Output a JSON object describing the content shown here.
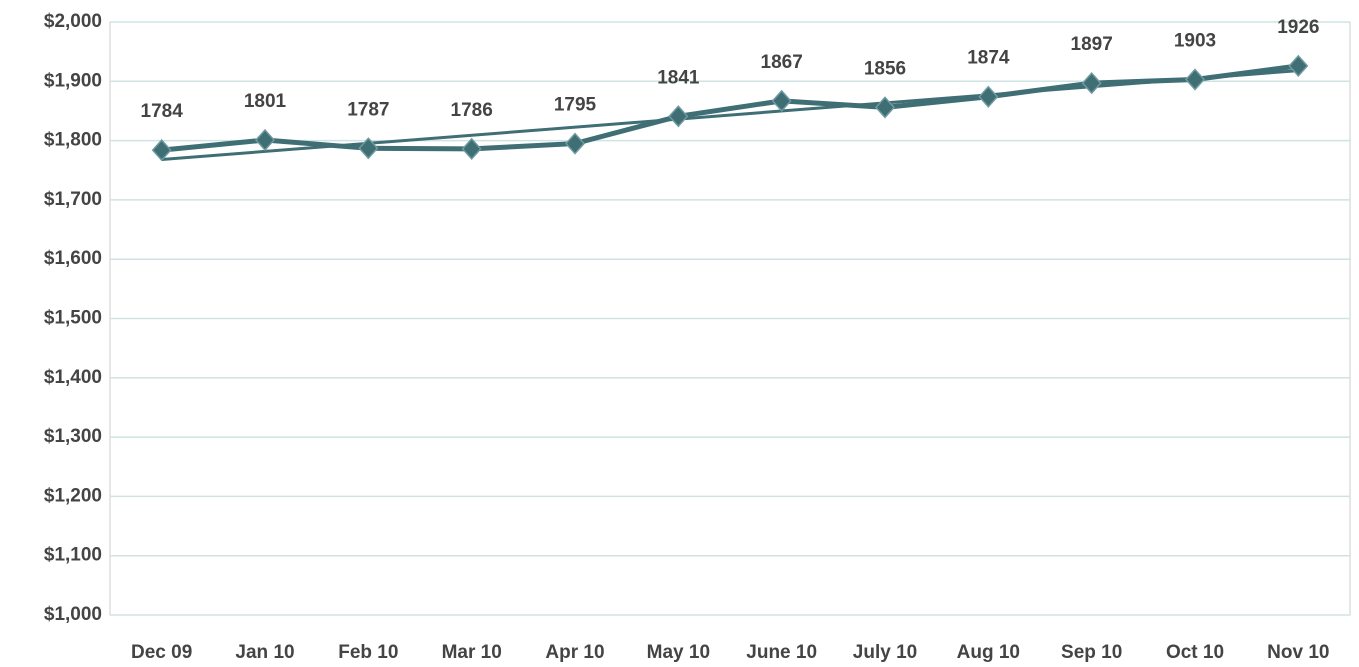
{
  "chart_data": {
    "type": "line",
    "categories": [
      "Dec 09",
      "Jan 10",
      "Feb 10",
      "Mar 10",
      "Apr 10",
      "May 10",
      "June 10",
      "July 10",
      "Aug 10",
      "Sep 10",
      "Oct 10",
      "Nov 10"
    ],
    "series": [
      {
        "color": "#3f6e75",
        "values": [
          1784,
          1801,
          1787,
          1786,
          1795,
          1841,
          1867,
          1856,
          1874,
          1897,
          1903,
          1926
        ]
      }
    ],
    "ylim": [
      1000,
      2000
    ],
    "yticks": [
      {
        "value": 1000,
        "label": "$1,000"
      },
      {
        "value": 1100,
        "label": "$1,100"
      },
      {
        "value": 1200,
        "label": "$1,200"
      },
      {
        "value": 1300,
        "label": "$1,300"
      },
      {
        "value": 1400,
        "label": "$1,400"
      },
      {
        "value": 1500,
        "label": "$1,500"
      },
      {
        "value": 1600,
        "label": "$1,600"
      },
      {
        "value": 1700,
        "label": "$1,700"
      },
      {
        "value": 1800,
        "label": "$1,800"
      },
      {
        "value": 1900,
        "label": "$1,900"
      },
      {
        "value": 2000,
        "label": "$2,000"
      }
    ],
    "grid": true,
    "trendline": "linear"
  }
}
